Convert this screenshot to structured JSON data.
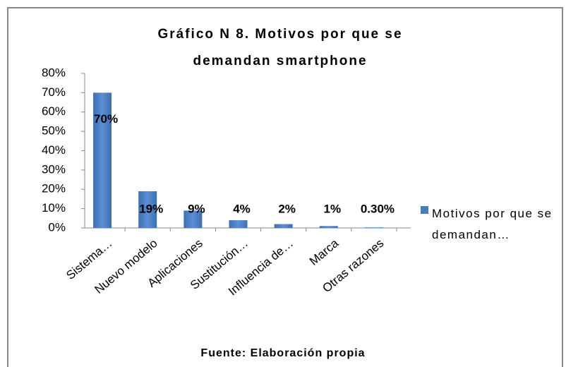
{
  "chart_data": {
    "type": "bar",
    "title": "Gráfico N  8. Motivos por que se demandan smartphone",
    "source": "Fuente: Elaboración propia",
    "categories": [
      "Sistema…",
      "Nuevo modelo",
      "Aplicaciones",
      "Sustitución…",
      "Influencia de…",
      "Marca",
      "Otras razones"
    ],
    "series": [
      {
        "name": "Motivos por que se demandan…",
        "color": "#4a7ebb",
        "values": [
          70,
          19,
          9,
          4,
          2,
          1,
          0.3
        ],
        "value_labels": [
          "70%",
          "19%",
          "9%",
          "4%",
          "2%",
          "1%",
          "0.30%"
        ]
      }
    ],
    "ylim": [
      0,
      80
    ],
    "yticks": [
      {
        "value": 0,
        "label": "0%"
      },
      {
        "value": 10,
        "label": "10%"
      },
      {
        "value": 20,
        "label": "20%"
      },
      {
        "value": 30,
        "label": "30%"
      },
      {
        "value": 40,
        "label": "40%"
      },
      {
        "value": 50,
        "label": "50%"
      },
      {
        "value": 60,
        "label": "60%"
      },
      {
        "value": 70,
        "label": "70%"
      },
      {
        "value": 80,
        "label": "80%"
      }
    ],
    "legend": "right"
  }
}
